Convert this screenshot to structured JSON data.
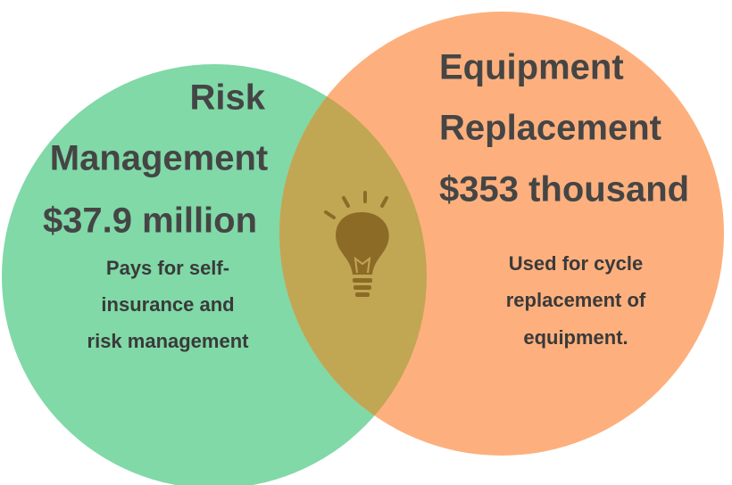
{
  "left": {
    "title": [
      "Risk",
      "Management"
    ],
    "amount": "$37.9 million",
    "description": [
      "Pays for self-",
      "insurance and",
      "risk management"
    ]
  },
  "right": {
    "title": [
      "Equipment",
      "Replacement"
    ],
    "amount": "$353 thousand",
    "description": [
      "Used for cycle",
      "replacement of",
      "equipment."
    ]
  }
}
